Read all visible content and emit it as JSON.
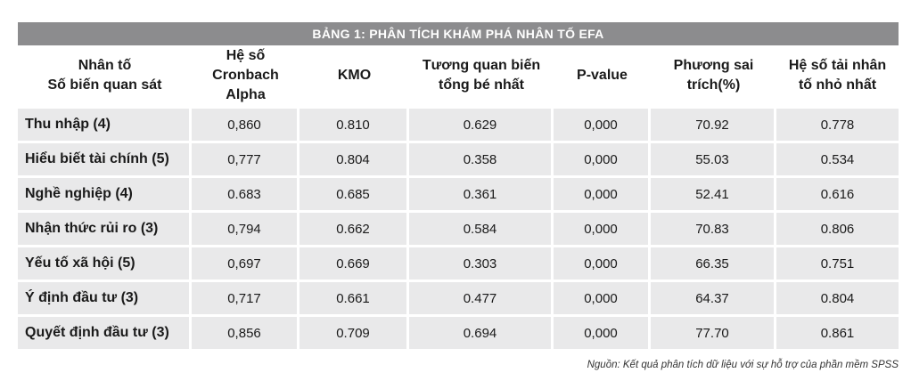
{
  "table": {
    "title": "BẢNG 1: PHÂN TÍCH KHÁM PHÁ NHÂN TỐ EFA",
    "headers": [
      [
        "Nhân tố",
        "Số biến quan sát"
      ],
      [
        "Hệ số Cronbach",
        "Alpha"
      ],
      [
        "KMO"
      ],
      [
        "Tương quan biến",
        "tổng bé nhất"
      ],
      [
        "P-value"
      ],
      [
        "Phương sai",
        "trích(%)"
      ],
      [
        "Hệ số tải nhân",
        "tố nhỏ nhất"
      ]
    ],
    "rows": [
      [
        "Thu nhập (4)",
        "0,860",
        "0.810",
        "0.629",
        "0,000",
        "70.92",
        "0.778"
      ],
      [
        "Hiểu biết tài chính (5)",
        "0,777",
        "0.804",
        "0.358",
        "0,000",
        "55.03",
        "0.534"
      ],
      [
        "Nghề nghiệp (4)",
        "0.683",
        "0.685",
        "0.361",
        "0,000",
        "52.41",
        "0.616"
      ],
      [
        "Nhận thức rủi ro (3)",
        "0,794",
        "0.662",
        "0.584",
        "0,000",
        "70.83",
        "0.806"
      ],
      [
        "Yếu tố xã hội (5)",
        "0,697",
        "0.669",
        "0.303",
        "0,000",
        "66.35",
        "0.751"
      ],
      [
        "Ý định đầu tư (3)",
        "0,717",
        "0.661",
        "0.477",
        "0,000",
        "64.37",
        "0.804"
      ],
      [
        "Quyết định đầu tư (3)",
        "0,856",
        "0.709",
        "0.694",
        "0,000",
        "77.70",
        "0.861"
      ]
    ],
    "source": "Nguồn: Kết quả phân tích dữ liệu với sự hỗ trợ của phần mềm SPSS"
  }
}
